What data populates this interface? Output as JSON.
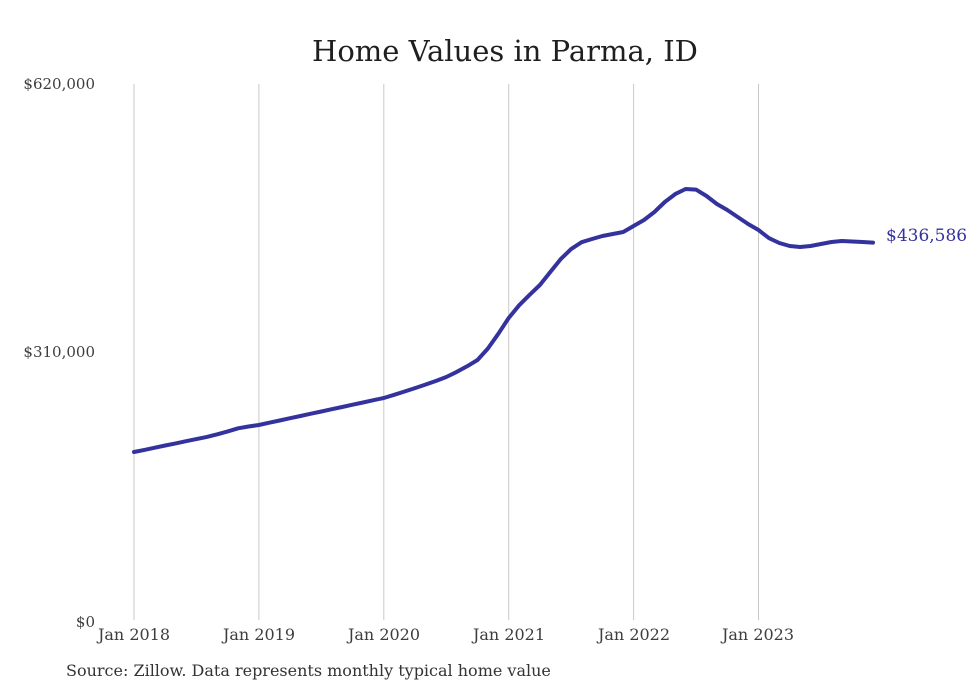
{
  "title": "Home Values in Parma, ID",
  "source_note": "Source: Zillow. Data represents monthly typical home value",
  "end_label": "$436,586",
  "colors": {
    "line": "#34329d",
    "grid": "#c9c9c9",
    "title_text": "#1f1f1f",
    "axis_text": "#3d3d3d"
  },
  "y_axis": {
    "labels": [
      "$620,000",
      "$310,000",
      "$0"
    ],
    "min": 0,
    "max": 620000
  },
  "x_axis": {
    "labels": [
      "Jan 2018",
      "Jan 2019",
      "Jan 2020",
      "Jan 2021",
      "Jan 2022",
      "Jan 2023"
    ]
  },
  "chart_data": {
    "type": "line",
    "title": "Home Values in Parma, ID",
    "xlabel": "",
    "ylabel": "",
    "ylim": [
      0,
      620000
    ],
    "grid": "vertical-only",
    "legend": "none",
    "line_color": "#34329d",
    "end_label": "$436,586",
    "x": [
      "Jan 2018",
      "Feb 2018",
      "Mar 2018",
      "Apr 2018",
      "May 2018",
      "Jun 2018",
      "Jul 2018",
      "Aug 2018",
      "Sep 2018",
      "Oct 2018",
      "Nov 2018",
      "Dec 2018",
      "Jan 2019",
      "Feb 2019",
      "Mar 2019",
      "Apr 2019",
      "May 2019",
      "Jun 2019",
      "Jul 2019",
      "Aug 2019",
      "Sep 2019",
      "Oct 2019",
      "Nov 2019",
      "Dec 2019",
      "Jan 2020",
      "Feb 2020",
      "Mar 2020",
      "Apr 2020",
      "May 2020",
      "Jun 2020",
      "Jul 2020",
      "Aug 2020",
      "Sep 2020",
      "Oct 2020",
      "Nov 2020",
      "Dec 2020",
      "Jan 2021",
      "Feb 2021",
      "Mar 2021",
      "Apr 2021",
      "May 2021",
      "Jun 2021",
      "Jul 2021",
      "Aug 2021",
      "Sep 2021",
      "Oct 2021",
      "Nov 2021",
      "Dec 2021",
      "Jan 2022",
      "Feb 2022",
      "Mar 2022",
      "Apr 2022",
      "May 2022",
      "Jun 2022",
      "Jul 2022",
      "Aug 2022",
      "Sep 2022",
      "Oct 2022",
      "Nov 2022",
      "Dec 2022",
      "Jan 2023",
      "Feb 2023",
      "Mar 2023",
      "Apr 2023",
      "May 2023",
      "Jun 2023",
      "Jul 2023",
      "Aug 2023",
      "Sep 2023",
      "Oct 2023",
      "Nov 2023",
      "Dec 2023"
    ],
    "values": [
      194300,
      196800,
      199300,
      201800,
      204300,
      206800,
      209300,
      211800,
      214800,
      218200,
      221700,
      223800,
      225600,
      228200,
      230800,
      233400,
      236000,
      238600,
      241200,
      243800,
      246400,
      249000,
      251600,
      254200,
      256800,
      260500,
      264300,
      268200,
      272300,
      276500,
      281100,
      287000,
      293500,
      300700,
      314000,
      331000,
      349300,
      364000,
      376000,
      387500,
      402500,
      417500,
      429000,
      437000,
      440700,
      444200,
      446500,
      448800,
      455700,
      462700,
      471900,
      483500,
      492700,
      498500,
      497900,
      490400,
      481200,
      474200,
      466200,
      458100,
      451100,
      441800,
      436100,
      432600,
      431400,
      432600,
      434900,
      437200,
      438400,
      437800,
      437200,
      436586
    ]
  }
}
